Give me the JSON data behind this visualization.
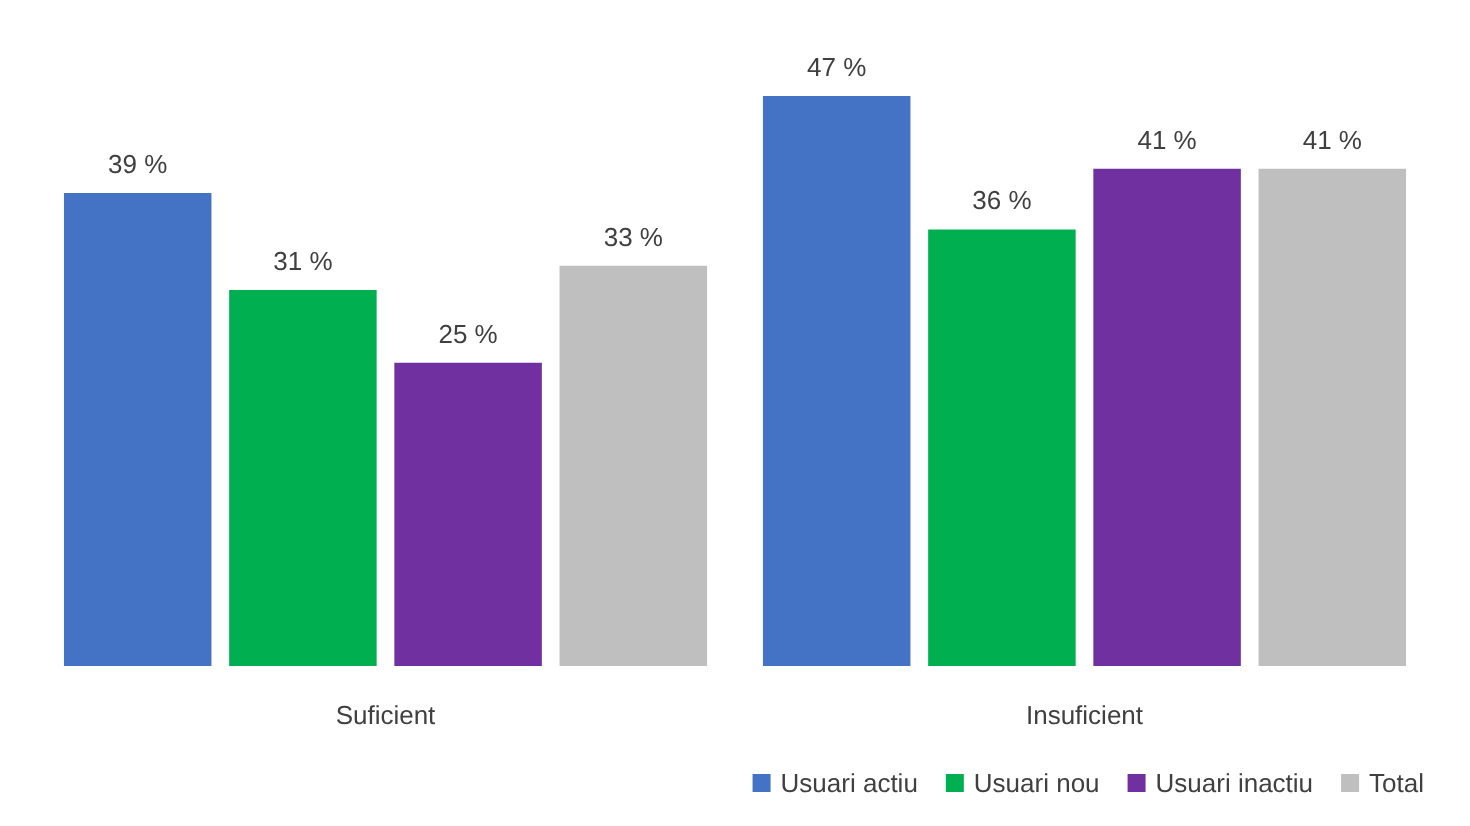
{
  "chart_data": {
    "type": "bar",
    "categories": [
      "Suficient",
      "Insuficient"
    ],
    "legend": "bottom right",
    "series": [
      {
        "name": "Usuari actiu",
        "color": "#4472c4",
        "values": [
          39,
          47
        ],
        "value_labels": [
          "39 %",
          "47 %"
        ]
      },
      {
        "name": "Usuari nou",
        "color": "#00b050",
        "values": [
          31,
          36
        ],
        "value_labels": [
          "31 %",
          "36 %"
        ]
      },
      {
        "name": "Usuari inactiu",
        "color": "#7030a0",
        "values": [
          25,
          41
        ],
        "value_labels": [
          "25 %",
          "41 %"
        ]
      },
      {
        "name": "Total",
        "color": "#bfbfbf",
        "values": [
          33,
          41
        ],
        "value_labels": [
          "33 %",
          "41 %"
        ]
      }
    ]
  }
}
